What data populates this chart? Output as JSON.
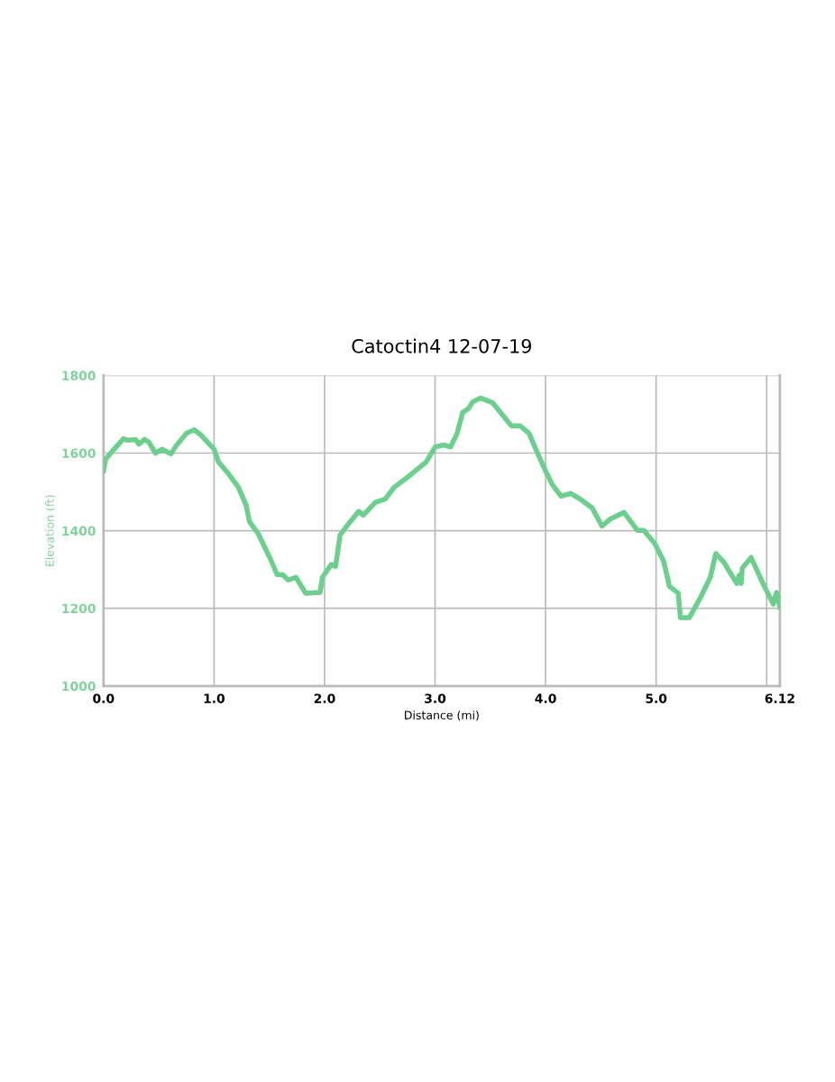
{
  "chart_data": {
    "type": "line",
    "title": "Catoctin4 12-07-19",
    "xlabel": "Distance (mi)",
    "ylabel": "Elevation (ft)",
    "x": [
      0,
      0.02,
      0.08,
      0.18,
      0.22,
      0.29,
      0.32,
      0.37,
      0.41,
      0.47,
      0.53,
      0.61,
      0.65,
      0.75,
      0.82,
      0.88,
      1.0,
      1.04,
      1.13,
      1.22,
      1.29,
      1.32,
      1.4,
      1.51,
      1.57,
      1.62,
      1.67,
      1.74,
      1.83,
      1.96,
      1.98,
      2.06,
      2.1,
      2.14,
      2.22,
      2.31,
      2.35,
      2.46,
      2.55,
      2.63,
      2.77,
      2.92,
      3.0,
      3.08,
      3.14,
      3.2,
      3.25,
      3.3,
      3.34,
      3.41,
      3.52,
      3.63,
      3.69,
      3.77,
      3.85,
      3.93,
      4.0,
      4.06,
      4.14,
      4.23,
      4.31,
      4.42,
      4.51,
      4.59,
      4.71,
      4.83,
      4.89,
      4.99,
      5.07,
      5.12,
      5.2,
      5.22,
      5.3,
      5.4,
      5.49,
      5.54,
      5.61,
      5.73,
      5.75,
      5.77,
      5.78,
      5.86,
      5.97,
      6.06,
      6.09,
      6.12
    ],
    "series": [
      {
        "color": "#6dcf8e",
        "values": [
          1555,
          1585,
          1605,
          1637,
          1633,
          1635,
          1623,
          1635,
          1628,
          1600,
          1610,
          1598,
          1616,
          1651,
          1660,
          1647,
          1610,
          1577,
          1547,
          1512,
          1466,
          1424,
          1392,
          1327,
          1287,
          1287,
          1273,
          1280,
          1239,
          1241,
          1280,
          1313,
          1308,
          1389,
          1419,
          1450,
          1440,
          1473,
          1482,
          1512,
          1542,
          1577,
          1616,
          1621,
          1616,
          1651,
          1705,
          1714,
          1732,
          1742,
          1730,
          1691,
          1670,
          1670,
          1651,
          1598,
          1554,
          1519,
          1489,
          1496,
          1482,
          1459,
          1412,
          1431,
          1447,
          1401,
          1401,
          1366,
          1320,
          1257,
          1239,
          1176,
          1176,
          1227,
          1280,
          1341,
          1320,
          1264,
          1285,
          1264,
          1304,
          1331,
          1262,
          1211,
          1241,
          1204
        ]
      }
    ],
    "xlim": [
      0,
      6.12
    ],
    "ylim": [
      1000,
      1800
    ],
    "xticks": [
      {
        "value": 0,
        "label": "0.0"
      },
      {
        "value": 1,
        "label": "1.0"
      },
      {
        "value": 2,
        "label": "2.0"
      },
      {
        "value": 3,
        "label": "3.0"
      },
      {
        "value": 4,
        "label": "4.0"
      },
      {
        "value": 5,
        "label": "5.0"
      },
      {
        "value": 6,
        "label": null
      },
      6.12
    ],
    "yticks": [
      1000,
      1200,
      1400,
      1600,
      1800
    ],
    "grid": true,
    "marker": "none",
    "line_style": "solid"
  }
}
